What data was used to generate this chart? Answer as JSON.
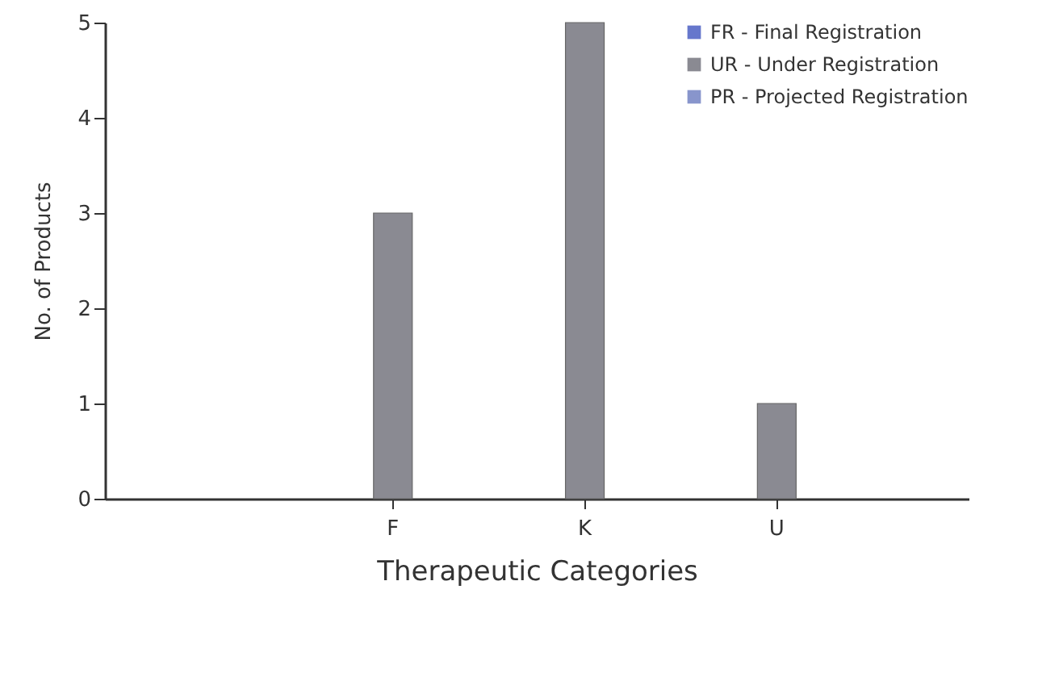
{
  "chart_data": {
    "type": "bar",
    "xlabel": "Therapeutic Categories",
    "ylabel": "No. of Products",
    "categories": [
      "F",
      "K",
      "U"
    ],
    "series": [
      {
        "name": "FR - Final Registration",
        "color": "#6677cc",
        "values": [
          null,
          null,
          null
        ]
      },
      {
        "name": "UR - Under Registration",
        "color": "#8a8a92",
        "values": [
          3,
          5,
          1
        ]
      },
      {
        "name": "PR - Projected Registration",
        "color": "#8895cc",
        "values": [
          null,
          null,
          null
        ]
      }
    ],
    "ylim": [
      0,
      5
    ],
    "yticks": [
      0,
      1,
      2,
      3,
      4,
      5
    ],
    "grid": false,
    "legend": "top right"
  }
}
